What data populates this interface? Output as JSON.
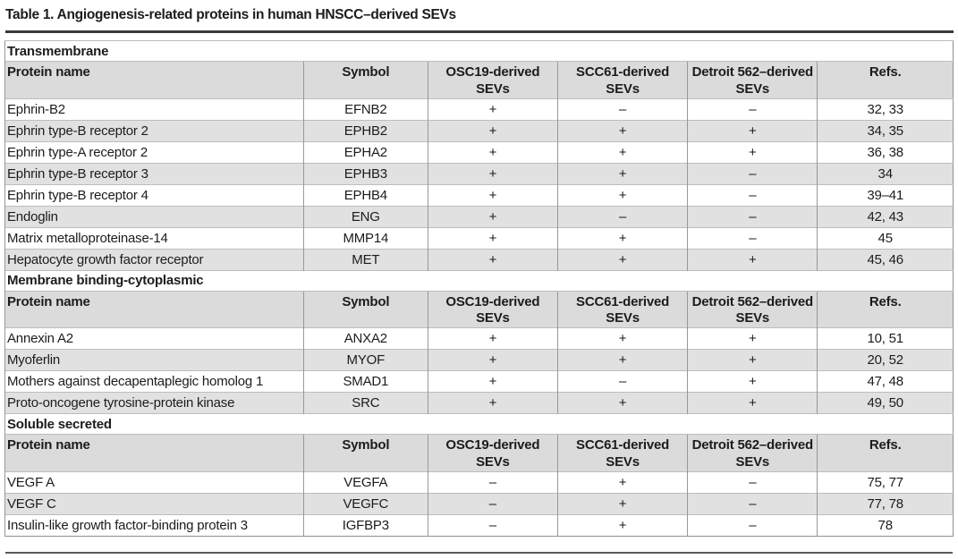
{
  "title": "Table 1. Angiogenesis-related proteins in human HNSCC–derived SEVs",
  "table": {
    "columns": [
      {
        "key": "protein",
        "label": "Protein name",
        "align": "left"
      },
      {
        "key": "symbol",
        "label": "Symbol",
        "align": "center"
      },
      {
        "key": "osc19",
        "label": "OSC19-derived SEVs",
        "align": "center"
      },
      {
        "key": "scc61",
        "label": "SCC61-derived SEVs",
        "align": "center"
      },
      {
        "key": "detroit562",
        "label": "Detroit 562–derived SEVs",
        "align": "center"
      },
      {
        "key": "refs",
        "label": "Refs.",
        "align": "center"
      }
    ],
    "sections": [
      {
        "name": "Transmembrane",
        "rows": [
          {
            "protein": "Ephrin-B2",
            "symbol": "EFNB2",
            "osc19": "+",
            "scc61": "–",
            "detroit562": "–",
            "refs": "32, 33"
          },
          {
            "protein": "Ephrin type-B receptor 2",
            "symbol": "EPHB2",
            "osc19": "+",
            "scc61": "+",
            "detroit562": "+",
            "refs": "34, 35"
          },
          {
            "protein": "Ephrin type-A receptor 2",
            "symbol": "EPHA2",
            "osc19": "+",
            "scc61": "+",
            "detroit562": "+",
            "refs": "36, 38"
          },
          {
            "protein": "Ephrin type-B receptor 3",
            "symbol": "EPHB3",
            "osc19": "+",
            "scc61": "+",
            "detroit562": "–",
            "refs": "34"
          },
          {
            "protein": "Ephrin type-B receptor 4",
            "symbol": "EPHB4",
            "osc19": "+",
            "scc61": "+",
            "detroit562": "–",
            "refs": "39–41"
          },
          {
            "protein": "Endoglin",
            "symbol": "ENG",
            "osc19": "+",
            "scc61": "–",
            "detroit562": "–",
            "refs": "42, 43"
          },
          {
            "protein": "Matrix metalloproteinase-14",
            "symbol": "MMP14",
            "osc19": "+",
            "scc61": "+",
            "detroit562": "–",
            "refs": "45"
          },
          {
            "protein": "Hepatocyte growth factor receptor",
            "symbol": "MET",
            "osc19": "+",
            "scc61": "+",
            "detroit562": "+",
            "refs": "45, 46"
          }
        ]
      },
      {
        "name": "Membrane binding-cytoplasmic",
        "rows": [
          {
            "protein": "Annexin A2",
            "symbol": "ANXA2",
            "osc19": "+",
            "scc61": "+",
            "detroit562": "+",
            "refs": "10, 51"
          },
          {
            "protein": "Myoferlin",
            "symbol": "MYOF",
            "osc19": "+",
            "scc61": "+",
            "detroit562": "+",
            "refs": "20, 52"
          },
          {
            "protein": "Mothers against decapentaplegic homolog 1",
            "symbol": "SMAD1",
            "osc19": "+",
            "scc61": "–",
            "detroit562": "+",
            "refs": "47, 48"
          },
          {
            "protein": "Proto-oncogene tyrosine-protein kinase",
            "symbol": "SRC",
            "osc19": "+",
            "scc61": "+",
            "detroit562": "+",
            "refs": "49, 50"
          }
        ]
      },
      {
        "name": "Soluble secreted",
        "rows": [
          {
            "protein": "VEGF A",
            "symbol": "VEGFA",
            "osc19": "–",
            "scc61": "+",
            "detroit562": "–",
            "refs": "75, 77"
          },
          {
            "protein": "VEGF C",
            "symbol": "VEGFC",
            "osc19": "–",
            "scc61": "+",
            "detroit562": "–",
            "refs": "77, 78"
          },
          {
            "protein": "Insulin-like growth factor-binding protein 3",
            "symbol": "IGFBP3",
            "osc19": "–",
            "scc61": "+",
            "detroit562": "–",
            "refs": "78"
          }
        ]
      }
    ]
  },
  "colors": {
    "header_bg": "#dbdbdb",
    "stripe_bg": "#e1e1e1",
    "rule_dark": "#3a3a3a",
    "rule_bottom": "#5a5a5a"
  }
}
